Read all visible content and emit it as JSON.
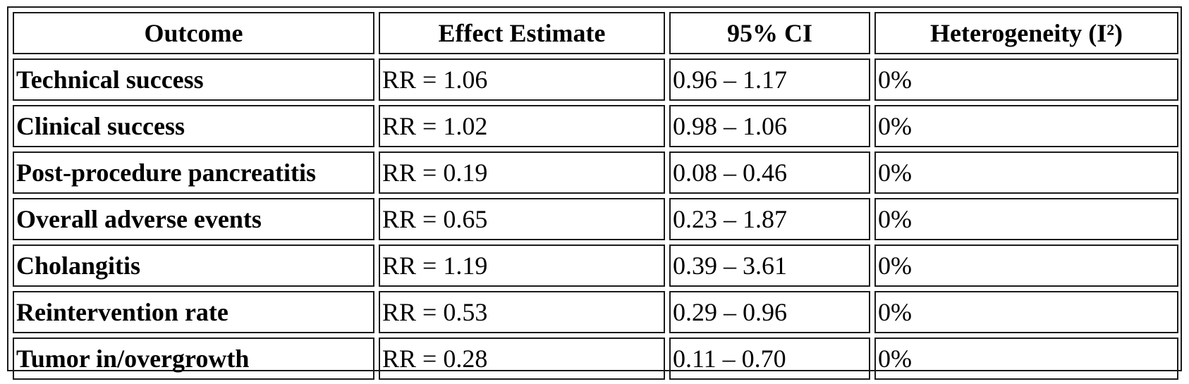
{
  "table": {
    "headers": [
      "Outcome",
      "Effect Estimate",
      "95% CI",
      "Heterogeneity (I²)"
    ],
    "rows": [
      {
        "outcome": "Technical success",
        "effect": "RR = 1.06",
        "ci": "0.96 – 1.17",
        "heterogeneity": "0%"
      },
      {
        "outcome": "Clinical success",
        "effect": "RR = 1.02",
        "ci": "0.98 – 1.06",
        "heterogeneity": "0%"
      },
      {
        "outcome": "Post-procedure pancreatitis",
        "effect": "RR = 0.19",
        "ci": "0.08 – 0.46",
        "heterogeneity": "0%"
      },
      {
        "outcome": "Overall adverse events",
        "effect": "RR = 0.65",
        "ci": "0.23 – 1.87",
        "heterogeneity": "0%"
      },
      {
        "outcome": "Cholangitis",
        "effect": "RR = 1.19",
        "ci": "0.39 – 3.61",
        "heterogeneity": "0%"
      },
      {
        "outcome": "Reintervention rate",
        "effect": "RR = 0.53",
        "ci": "0.29 – 0.96",
        "heterogeneity": "0%"
      },
      {
        "outcome": "Tumor in/overgrowth",
        "effect": "RR = 0.28",
        "ci": "0.11 – 0.70",
        "heterogeneity": "0%"
      }
    ]
  }
}
